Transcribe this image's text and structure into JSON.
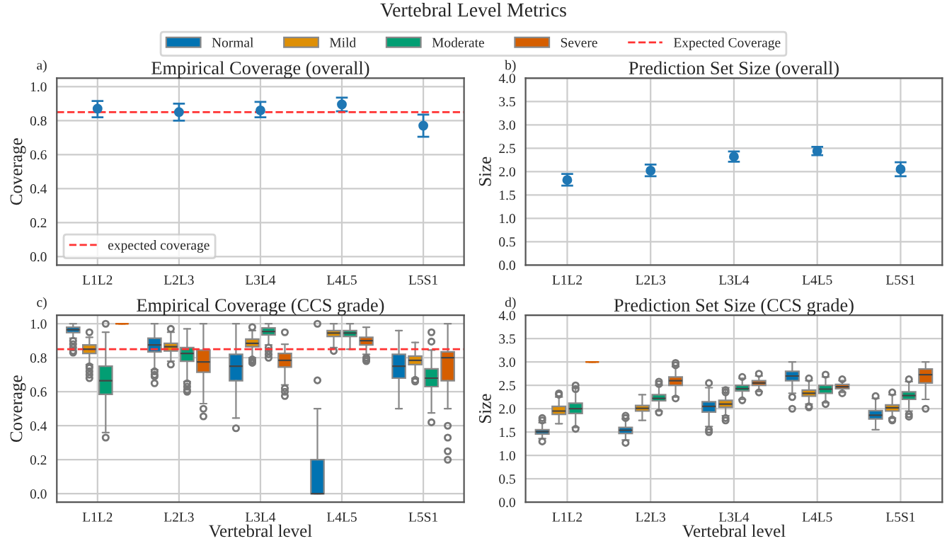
{
  "chart_data": [
    {
      "type": "scatter",
      "title": "Empirical Coverage (overall)",
      "ylabel": "Coverage",
      "annotations": [
        "Vertebral Level Metrics",
        "a)"
      ],
      "categories": [
        "L1L2",
        "L2L3",
        "L3L4",
        "L4L5",
        "L5S1"
      ],
      "ylim": [
        -0.05,
        1.05
      ],
      "yticks": [
        {
          "value": 0.0,
          "label": "0.0"
        },
        0.2,
        0.4,
        0.6,
        0.8,
        {
          "value": 1.0,
          "label": "1.0"
        }
      ],
      "grid": true,
      "marker": "circle",
      "legend": "bottom left",
      "series": [
        {
          "color": "#1f77b4",
          "values": [
            0.87,
            0.85,
            0.86,
            0.895,
            0.77
          ],
          "errors": [
            [
              0.82,
              0.915
            ],
            [
              0.8,
              0.9
            ],
            [
              0.82,
              0.91
            ],
            [
              0.855,
              0.935
            ],
            [
              0.705,
              0.835
            ]
          ]
        }
      ],
      "ref_lines": [
        {
          "axis": "y",
          "value": 0.85,
          "label": "expected coverage",
          "color": "#ff3333",
          "line_style": "dashed"
        }
      ]
    },
    {
      "type": "scatter",
      "title": "Prediction Set Size (overall)",
      "ylabel": "Size",
      "annotations": [
        "b)"
      ],
      "categories": [
        "L1L2",
        "L2L3",
        "L3L4",
        "L4L5",
        "L5S1"
      ],
      "ylim": [
        0,
        4
      ],
      "yticks": [
        {
          "value": 0,
          "label": "0.0"
        },
        0.5,
        {
          "value": 1,
          "label": "1.0"
        },
        1.5,
        {
          "value": 2,
          "label": "2.0"
        },
        2.5,
        {
          "value": 3,
          "label": "3.0"
        },
        3.5,
        {
          "value": 4,
          "label": "4.0"
        }
      ],
      "grid": true,
      "marker": "circle",
      "series": [
        {
          "color": "#1f77b4",
          "values": [
            1.82,
            2.02,
            2.32,
            2.44,
            2.05
          ],
          "errors": [
            [
              1.7,
              1.95
            ],
            [
              1.9,
              2.15
            ],
            [
              2.21,
              2.43
            ],
            [
              2.35,
              2.53
            ],
            [
              1.9,
              2.2
            ]
          ]
        }
      ]
    },
    {
      "type": "box",
      "title": "Empirical Coverage (CCS grade)",
      "xlabel": "Vertebral level",
      "ylabel": "Coverage",
      "annotations": [
        "c)"
      ],
      "categories": [
        "L1L2",
        "L2L3",
        "L3L4",
        "L4L5",
        "L5S1"
      ],
      "ylim": [
        -0.05,
        1.05
      ],
      "yticks": [
        {
          "value": 0.0,
          "label": "0.0"
        },
        0.2,
        0.4,
        0.6,
        0.8,
        {
          "value": 1.0,
          "label": "1.0"
        }
      ],
      "grid": true,
      "legend": "top",
      "series": [
        {
          "name": "Normal",
          "color": "#0173b2",
          "boxes": [
            {
              "low": 0.915,
              "q1": 0.948,
              "median": 0.965,
              "q3": 0.98,
              "high": 1.0,
              "outliers": [
                0.9,
                0.88,
                0.86,
                0.84,
                0.83
              ]
            },
            {
              "low": 0.73,
              "q1": 0.835,
              "median": 0.875,
              "q3": 0.915,
              "high": 1.0,
              "outliers": [
                0.72,
                0.7,
                0.69,
                0.65
              ]
            },
            {
              "low": 0.445,
              "q1": 0.665,
              "median": 0.75,
              "q3": 0.82,
              "high": 1.0,
              "outliers": [
                0.385
              ]
            },
            {
              "low": 0.0,
              "q1": 0.0,
              "median": 0.0,
              "q3": 0.2,
              "high": 0.5,
              "outliers": [
                0.667,
                1.0
              ]
            },
            {
              "low": 0.5,
              "q1": 0.68,
              "median": 0.75,
              "q3": 0.82,
              "high": 0.96
            }
          ]
        },
        {
          "name": "Mild",
          "color": "#de8f05",
          "boxes": [
            {
              "low": 0.76,
              "q1": 0.825,
              "median": 0.85,
              "q3": 0.875,
              "high": 0.92,
              "outliers": [
                0.95,
                0.75,
                0.74,
                0.72,
                0.7,
                0.68
              ]
            },
            {
              "low": 0.78,
              "q1": 0.84,
              "median": 0.865,
              "q3": 0.885,
              "high": 0.95,
              "outliers": [
                0.97,
                0.76
              ]
            },
            {
              "low": 0.8,
              "q1": 0.865,
              "median": 0.885,
              "q3": 0.91,
              "high": 0.96,
              "outliers": [
                0.98,
                0.79,
                0.78,
                0.77
              ]
            },
            {
              "low": 0.86,
              "q1": 0.925,
              "median": 0.945,
              "q3": 0.96,
              "high": 1.0,
              "outliers": [
                0.84
              ]
            },
            {
              "low": 0.68,
              "q1": 0.76,
              "median": 0.785,
              "q3": 0.81,
              "high": 0.89,
              "outliers": [
                0.67,
                0.66
              ]
            }
          ]
        },
        {
          "name": "Moderate",
          "color": "#029e73",
          "boxes": [
            {
              "low": 0.36,
              "q1": 0.585,
              "median": 0.665,
              "q3": 0.75,
              "high": 0.95,
              "outliers": [
                0.33,
                1.0
              ]
            },
            {
              "low": 0.66,
              "q1": 0.78,
              "median": 0.825,
              "q3": 0.86,
              "high": 0.97,
              "outliers": [
                0.65,
                0.63,
                0.61,
                0.6
              ]
            },
            {
              "low": 0.875,
              "q1": 0.935,
              "median": 0.955,
              "q3": 0.975,
              "high": 1.0,
              "outliers": [
                0.86,
                0.84,
                0.82,
                0.8
              ]
            },
            {
              "low": 0.85,
              "q1": 0.925,
              "median": 0.945,
              "q3": 0.96,
              "high": 1.0
            },
            {
              "low": 0.475,
              "q1": 0.63,
              "median": 0.68,
              "q3": 0.735,
              "high": 0.845,
              "outliers": [
                0.42,
                0.95,
                0.895
              ]
            }
          ]
        },
        {
          "name": "Severe",
          "color": "#d55e00",
          "boxes": [
            {
              "low": 1.0,
              "q1": 1.0,
              "median": 1.0,
              "q3": 1.0,
              "high": 1.0
            },
            {
              "low": 0.53,
              "q1": 0.715,
              "median": 0.775,
              "q3": 0.845,
              "high": 1.0,
              "outliers": [
                0.5,
                0.455
              ]
            },
            {
              "low": 0.64,
              "q1": 0.745,
              "median": 0.785,
              "q3": 0.825,
              "high": 0.88,
              "outliers": [
                0.95,
                0.62,
                0.6,
                0.575
              ]
            },
            {
              "low": 0.82,
              "q1": 0.875,
              "median": 0.9,
              "q3": 0.92,
              "high": 0.98,
              "outliers": [
                0.8,
                0.79,
                0.78
              ]
            },
            {
              "low": 0.5,
              "q1": 0.665,
              "median": 0.8,
              "q3": 0.835,
              "high": 1.0,
              "outliers": [
                0.4,
                0.33,
                0.25,
                0.2
              ]
            }
          ]
        }
      ],
      "ref_lines": [
        {
          "axis": "y",
          "value": 0.85,
          "label": "Expected Coverage",
          "color": "#ff3333",
          "line_style": "dashed"
        }
      ]
    },
    {
      "type": "box",
      "title": "Prediction Set Size (CCS grade)",
      "xlabel": "Vertebral level",
      "ylabel": "Size",
      "annotations": [
        "d)"
      ],
      "categories": [
        "L1L2",
        "L2L3",
        "L3L4",
        "L4L5",
        "L5S1"
      ],
      "ylim": [
        0,
        4
      ],
      "yticks": [
        {
          "value": 0,
          "label": "0.0"
        },
        0.5,
        {
          "value": 1,
          "label": "1.0"
        },
        1.5,
        {
          "value": 2,
          "label": "2.0"
        },
        2.5,
        {
          "value": 3,
          "label": "3.0"
        },
        3.5,
        {
          "value": 4,
          "label": "4.0"
        }
      ],
      "grid": true,
      "series": [
        {
          "color": "#0173b2",
          "boxes": [
            {
              "low": 1.36,
              "q1": 1.46,
              "median": 1.51,
              "q3": 1.55,
              "high": 1.7,
              "outliers": [
                1.8,
                1.75,
                1.3
              ]
            },
            {
              "low": 1.33,
              "q1": 1.47,
              "median": 1.54,
              "q3": 1.6,
              "high": 1.78,
              "outliers": [
                1.85,
                1.8,
                1.27
              ]
            },
            {
              "low": 1.62,
              "q1": 1.93,
              "median": 2.05,
              "q3": 2.15,
              "high": 2.45,
              "outliers": [
                2.55,
                1.55,
                1.5
              ]
            },
            {
              "low": 2.33,
              "q1": 2.6,
              "median": 2.7,
              "q3": 2.8,
              "high": 3.0,
              "outliers": [
                2.25,
                2.0
              ]
            },
            {
              "low": 1.55,
              "q1": 1.78,
              "median": 1.86,
              "q3": 1.96,
              "high": 2.22,
              "outliers": [
                2.27
              ]
            }
          ]
        },
        {
          "color": "#de8f05",
          "boxes": [
            {
              "low": 1.68,
              "q1": 1.88,
              "median": 1.95,
              "q3": 2.05,
              "high": 2.25,
              "outliers": [
                2.33,
                2.3
              ]
            },
            {
              "low": 1.75,
              "q1": 1.95,
              "median": 2.01,
              "q3": 2.07,
              "high": 2.3
            },
            {
              "low": 1.85,
              "q1": 2.03,
              "median": 2.1,
              "q3": 2.18,
              "high": 2.45,
              "outliers": [
                2.4,
                2.35,
                1.8,
                1.75
              ]
            },
            {
              "low": 2.1,
              "q1": 2.27,
              "median": 2.33,
              "q3": 2.4,
              "high": 2.6,
              "outliers": [
                2.65,
                2.05,
                2.03
              ]
            },
            {
              "low": 1.8,
              "q1": 1.95,
              "median": 2.02,
              "q3": 2.08,
              "high": 2.3,
              "outliers": [
                2.35,
                1.77,
                1.75
              ]
            }
          ]
        },
        {
          "color": "#029e73",
          "boxes": [
            {
              "low": 1.6,
              "q1": 1.9,
              "median": 2.0,
              "q3": 2.12,
              "high": 2.45,
              "outliers": [
                2.5,
                2.42,
                1.57
              ]
            },
            {
              "low": 1.95,
              "q1": 2.17,
              "median": 2.22,
              "q3": 2.3,
              "high": 2.5,
              "outliers": [
                2.58,
                2.53,
                1.92
              ]
            },
            {
              "low": 2.2,
              "q1": 2.38,
              "median": 2.43,
              "q3": 2.5,
              "high": 2.65,
              "outliers": [
                2.68,
                2.18
              ]
            },
            {
              "low": 2.13,
              "q1": 2.33,
              "median": 2.42,
              "q3": 2.5,
              "high": 2.68,
              "outliers": [
                2.73,
                2.1
              ]
            },
            {
              "low": 1.95,
              "q1": 2.2,
              "median": 2.28,
              "q3": 2.36,
              "high": 2.58,
              "outliers": [
                2.63,
                1.88,
                1.83
              ]
            }
          ]
        },
        {
          "color": "#d55e00",
          "boxes": [
            {
              "low": 3.0,
              "q1": 3.0,
              "median": 3.0,
              "q3": 3.0,
              "high": 3.0
            },
            {
              "low": 2.25,
              "q1": 2.5,
              "median": 2.6,
              "q3": 2.68,
              "high": 2.9,
              "outliers": [
                2.98,
                2.93,
                2.22
              ]
            },
            {
              "low": 2.37,
              "q1": 2.5,
              "median": 2.55,
              "q3": 2.6,
              "high": 2.7,
              "outliers": [
                2.75,
                2.35
              ]
            },
            {
              "low": 2.35,
              "q1": 2.43,
              "median": 2.47,
              "q3": 2.52,
              "high": 2.6,
              "outliers": [
                2.63,
                2.33
              ]
            },
            {
              "low": 2.2,
              "q1": 2.55,
              "median": 2.73,
              "q3": 2.85,
              "high": 3.0,
              "outliers": [
                2.0
              ]
            }
          ]
        }
      ]
    }
  ]
}
